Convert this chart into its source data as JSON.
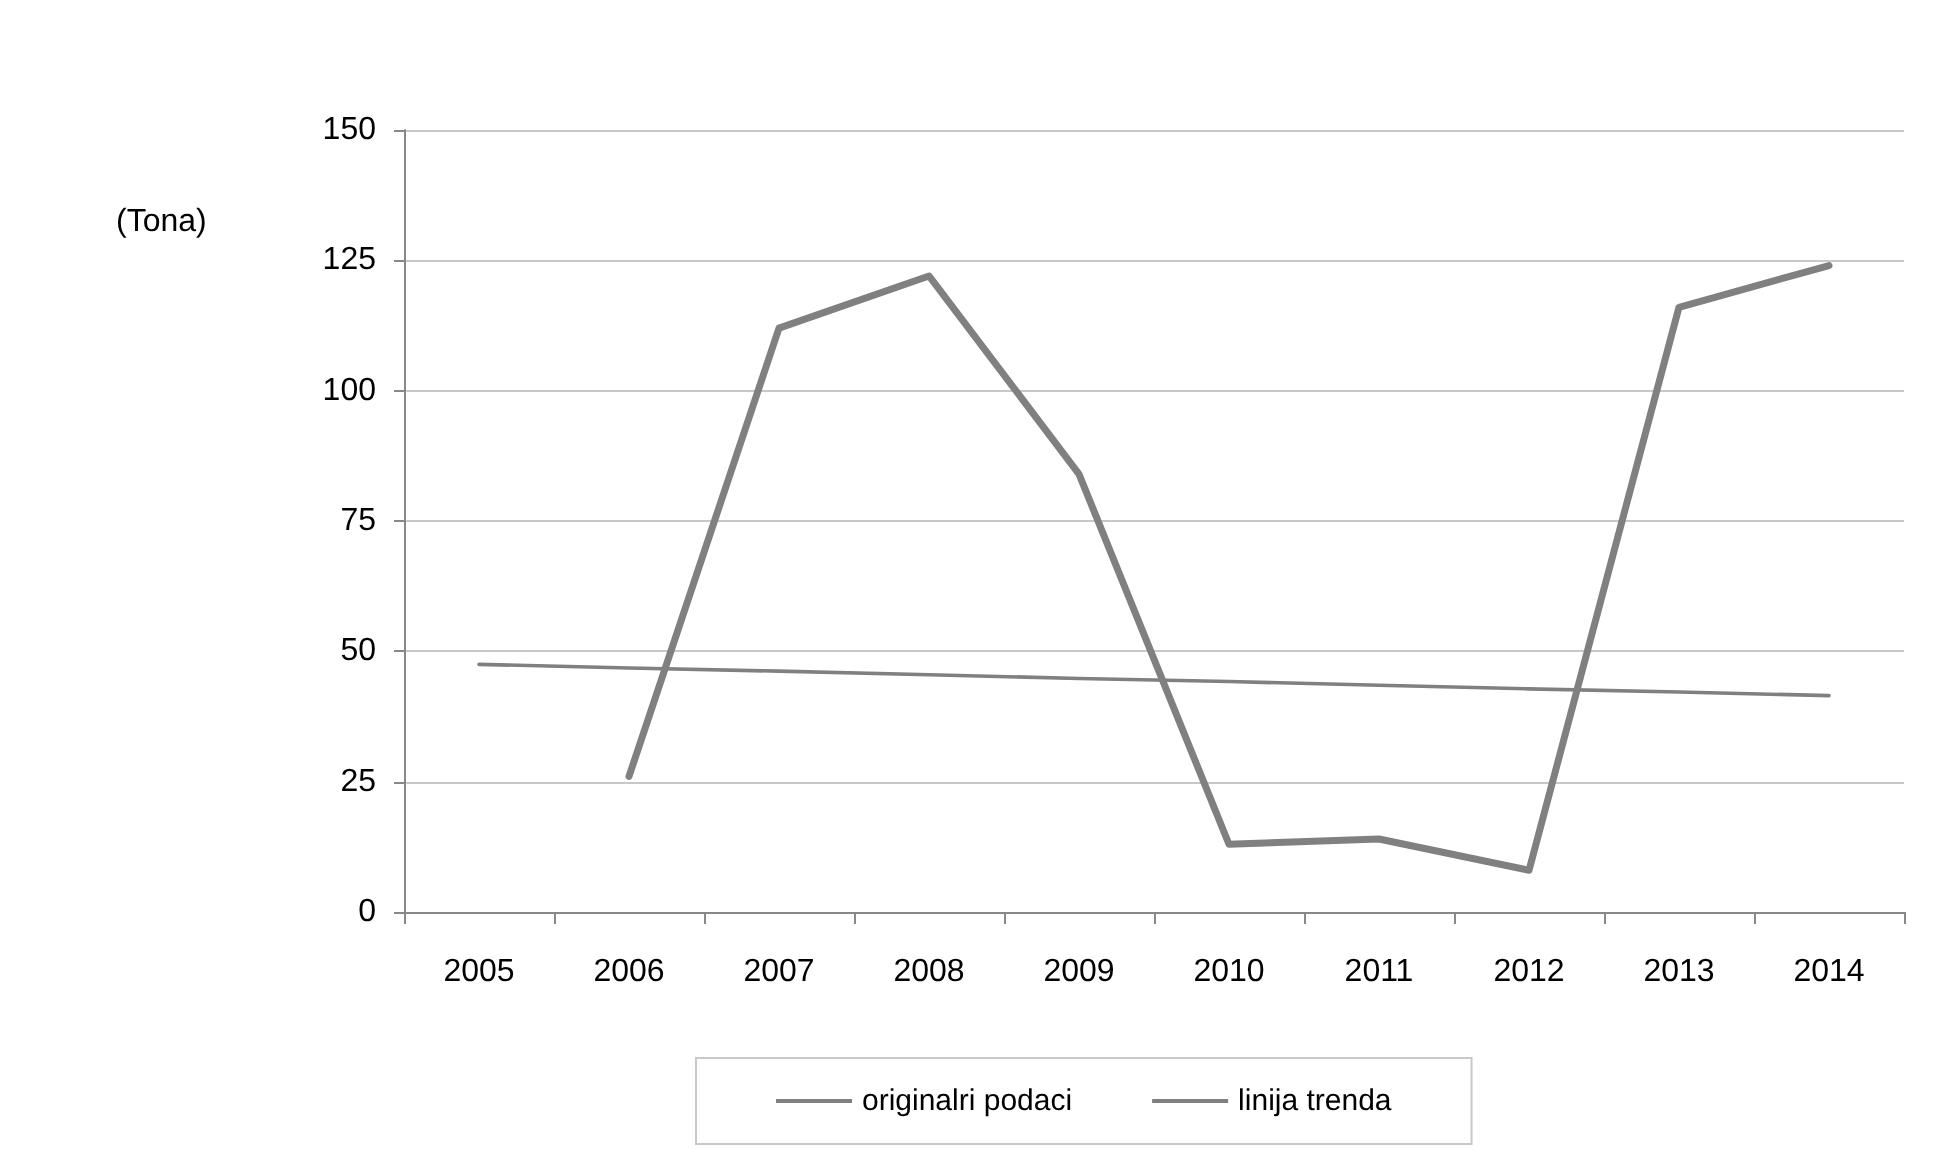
{
  "chart_data": {
    "type": "line",
    "ylabel": "(Tona)",
    "categories": [
      "2005",
      "2006",
      "2007",
      "2008",
      "2009",
      "2010",
      "2011",
      "2012",
      "2013",
      "2014"
    ],
    "series": [
      {
        "name": "originalri podaci",
        "color": "#808080",
        "values": [
          null,
          26,
          112,
          122,
          84,
          13,
          14,
          8,
          116,
          124
        ]
      },
      {
        "name": "linija trenda",
        "color": "#808080",
        "values": [
          47.5,
          46.8,
          46.2,
          45.5,
          44.8,
          44.2,
          43.5,
          42.8,
          42.2,
          41.5
        ]
      }
    ],
    "ylim": [
      0,
      150
    ],
    "yticks": [
      0,
      25,
      50,
      75,
      100,
      125,
      150
    ],
    "grid": "y",
    "legend": "bottom",
    "marker": "none",
    "line_style": "solid"
  }
}
